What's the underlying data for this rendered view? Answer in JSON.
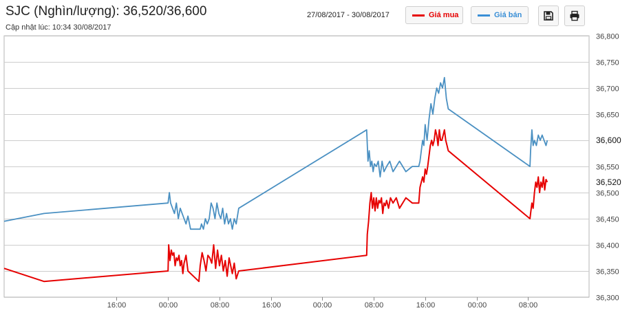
{
  "header": {
    "title": "SJC (Nghìn/lượng): 36,520/36,600",
    "updated": "Cập nhật lúc: 10:34 30/08/2017",
    "date_range": "27/08/2017 - 30/08/2017",
    "legend_buy": "Giá mua",
    "legend_sell": "Giá bán",
    "save_icon": "save-icon",
    "print_icon": "print-icon"
  },
  "colors": {
    "buy": "#e60000",
    "sell": "#4a90c2",
    "grid": "#cccccc",
    "axis": "#444444"
  },
  "chart_data": {
    "type": "line",
    "title": "SJC (Nghìn/lượng): 36,520/36,600",
    "ylim": [
      36300,
      36800
    ],
    "yticks": [
      36300,
      36350,
      36400,
      36450,
      36500,
      36550,
      36600,
      36650,
      36700,
      36750,
      36800
    ],
    "ytick_labels": [
      "36,300",
      "36,350",
      "36,400",
      "36,450",
      "36,500",
      "36,550",
      "36,600",
      "36,650",
      "36,700",
      "36,750",
      "36,800"
    ],
    "xlim": [
      -25.5,
      65.5
    ],
    "xticks": [
      -8,
      0,
      8,
      16,
      24,
      32,
      40,
      48,
      56
    ],
    "xtick_labels": [
      "16:00",
      "00:00",
      "08:00",
      "16:00",
      "00:00",
      "08:00",
      "16:00",
      "00:00",
      "08:00"
    ],
    "current_labels": [
      "36,520",
      "36,600"
    ],
    "series": [
      {
        "name": "Giá mua",
        "color": "#e60000",
        "x": [
          -25.5,
          -19.3,
          0,
          0.1,
          0.3,
          0.5,
          0.7,
          0.9,
          1.1,
          1.3,
          1.5,
          1.7,
          1.9,
          2.1,
          2.3,
          2.5,
          2.8,
          3.1,
          4.8,
          5.0,
          5.3,
          5.6,
          5.9,
          6.2,
          6.5,
          6.8,
          7.1,
          7.4,
          7.7,
          8.0,
          8.3,
          8.6,
          8.9,
          9.2,
          9.5,
          10.0,
          10.3,
          10.6,
          11.0,
          30.9,
          31.0,
          31.2,
          31.4,
          31.6,
          31.8,
          32.0,
          32.2,
          32.4,
          32.6,
          32.8,
          33.0,
          33.2,
          33.4,
          33.6,
          33.8,
          34.0,
          34.3,
          34.6,
          35.0,
          35.5,
          36.0,
          37.0,
          38.0,
          39.0,
          39.2,
          39.4,
          39.6,
          39.8,
          40.0,
          40.2,
          40.4,
          40.6,
          40.8,
          41.0,
          41.2,
          41.4,
          41.6,
          41.8,
          42.0,
          42.2,
          42.4,
          42.6,
          42.8,
          43.0,
          43.2,
          43.4,
          43.6,
          56.3,
          56.4,
          56.6,
          56.8,
          57.0,
          57.2,
          57.4,
          57.6,
          57.8,
          58.0,
          58.2,
          58.4,
          58.6,
          58.8,
          59.0
        ],
        "y": [
          36355,
          36330,
          36350,
          36400,
          36370,
          36390,
          36380,
          36385,
          36360,
          36375,
          36370,
          36380,
          36360,
          36370,
          36345,
          36365,
          36380,
          36350,
          36330,
          36360,
          36385,
          36370,
          36350,
          36380,
          36375,
          36365,
          36400,
          36355,
          36390,
          36360,
          36380,
          36350,
          36370,
          36340,
          36375,
          36345,
          36365,
          36335,
          36350,
          36380,
          36420,
          36445,
          36480,
          36500,
          36470,
          36490,
          36465,
          36490,
          36470,
          36485,
          36480,
          36490,
          36460,
          36480,
          36475,
          36485,
          36470,
          36490,
          36480,
          36490,
          36470,
          36490,
          36480,
          36480,
          36510,
          36520,
          36530,
          36520,
          36545,
          36535,
          36550,
          36570,
          36590,
          36600,
          36590,
          36600,
          36620,
          36610,
          36590,
          36620,
          36600,
          36600,
          36610,
          36620,
          36600,
          36590,
          36580,
          36450,
          36460,
          36480,
          36470,
          36500,
          36520,
          36510,
          36530,
          36500,
          36520,
          36510,
          36530,
          36505,
          36525,
          36520
        ],
        "values": [
          36355,
          36330,
          36350,
          36400,
          36370,
          36390,
          36380,
          36385,
          36360,
          36375,
          36370,
          36380,
          36360,
          36370,
          36345,
          36365,
          36380,
          36350,
          36330,
          36360,
          36385,
          36370,
          36350,
          36380,
          36375,
          36365,
          36400,
          36355,
          36390,
          36360,
          36380,
          36350,
          36370,
          36340,
          36375,
          36345,
          36365,
          36335,
          36350,
          36380,
          36420,
          36445,
          36480,
          36500,
          36470,
          36490,
          36465,
          36490,
          36470,
          36485,
          36480,
          36490,
          36460,
          36480,
          36475,
          36485,
          36470,
          36490,
          36480,
          36490,
          36470,
          36490,
          36480,
          36480,
          36510,
          36520,
          36530,
          36520,
          36545,
          36535,
          36550,
          36570,
          36590,
          36600,
          36590,
          36600,
          36620,
          36610,
          36590,
          36620,
          36600,
          36600,
          36610,
          36620,
          36600,
          36590,
          36580,
          36450,
          36460,
          36480,
          36470,
          36500,
          36520,
          36510,
          36530,
          36500,
          36520,
          36510,
          36530,
          36505,
          36525,
          36520
        ]
      },
      {
        "name": "Giá bán",
        "color": "#4a90c2",
        "x": [
          -25.5,
          -19.3,
          0,
          0.2,
          0.4,
          0.7,
          1.0,
          1.3,
          1.6,
          1.9,
          2.2,
          2.5,
          2.8,
          3.1,
          3.5,
          4.0,
          4.5,
          5.0,
          5.2,
          5.5,
          5.8,
          6.1,
          6.4,
          6.7,
          7.0,
          7.3,
          7.6,
          7.9,
          8.2,
          8.5,
          8.8,
          9.1,
          9.4,
          9.7,
          10.0,
          10.3,
          10.6,
          11.0,
          30.9,
          31.1,
          31.3,
          31.5,
          31.7,
          31.9,
          32.1,
          32.4,
          32.7,
          33.0,
          33.3,
          33.6,
          34.0,
          34.5,
          35.0,
          35.5,
          36.0,
          37.0,
          38.0,
          39.0,
          39.2,
          39.4,
          39.6,
          39.8,
          40.0,
          40.3,
          40.6,
          40.9,
          41.2,
          41.5,
          41.8,
          42.1,
          42.4,
          42.7,
          43.0,
          43.3,
          43.6,
          56.3,
          56.4,
          56.6,
          56.8,
          57.0,
          57.3,
          57.6,
          57.9,
          58.2,
          58.5,
          58.8,
          59.0
        ],
        "y": [
          36445,
          36460,
          36480,
          36500,
          36480,
          36470,
          36460,
          36480,
          36450,
          36470,
          36460,
          36450,
          36440,
          36455,
          36430,
          36430,
          36430,
          36430,
          36440,
          36430,
          36450,
          36440,
          36450,
          36480,
          36470,
          36450,
          36480,
          36460,
          36450,
          36470,
          36440,
          36460,
          36440,
          36450,
          36430,
          36450,
          36440,
          36470,
          36620,
          36560,
          36580,
          36550,
          36560,
          36540,
          36555,
          36550,
          36560,
          36530,
          36560,
          36540,
          36550,
          36560,
          36540,
          36550,
          36560,
          36540,
          36550,
          36550,
          36560,
          36580,
          36600,
          36590,
          36630,
          36600,
          36640,
          36670,
          36650,
          36680,
          36700,
          36690,
          36710,
          36700,
          36720,
          36680,
          36660,
          36550,
          36580,
          36620,
          36590,
          36600,
          36590,
          36610,
          36600,
          36610,
          36600,
          36590,
          36600
        ],
        "values": [
          36445,
          36460,
          36480,
          36500,
          36480,
          36470,
          36460,
          36480,
          36450,
          36470,
          36460,
          36450,
          36440,
          36455,
          36430,
          36430,
          36430,
          36430,
          36440,
          36430,
          36450,
          36440,
          36450,
          36480,
          36470,
          36450,
          36480,
          36460,
          36450,
          36470,
          36440,
          36460,
          36440,
          36450,
          36430,
          36450,
          36440,
          36470,
          36620,
          36560,
          36580,
          36550,
          36560,
          36540,
          36555,
          36550,
          36560,
          36530,
          36560,
          36540,
          36550,
          36560,
          36540,
          36550,
          36560,
          36540,
          36550,
          36550,
          36560,
          36580,
          36600,
          36590,
          36630,
          36600,
          36640,
          36670,
          36650,
          36680,
          36700,
          36690,
          36710,
          36700,
          36720,
          36680,
          36660,
          36550,
          36580,
          36620,
          36590,
          36600,
          36590,
          36610,
          36600,
          36610,
          36600,
          36590,
          36600
        ]
      }
    ],
    "grid": true,
    "legend": "top-right"
  }
}
